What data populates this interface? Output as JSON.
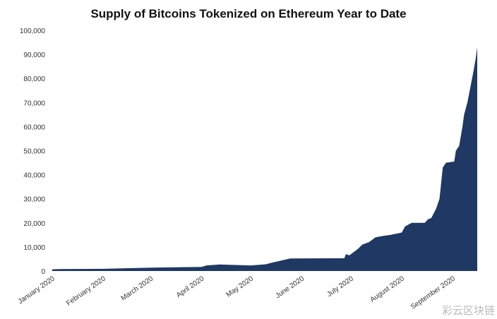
{
  "chart_data": {
    "type": "area",
    "title": "Supply of Bitcoins Tokenized on Ethereum Year to Date",
    "xlabel": "",
    "ylabel": "",
    "ylim": [
      0,
      100000
    ],
    "yticks": [
      "0",
      "10,000",
      "20,000",
      "30,000",
      "40,000",
      "50,000",
      "60,000",
      "70,000",
      "80,000",
      "90,000",
      "100,000"
    ],
    "ytick_values": [
      0,
      10000,
      20000,
      30000,
      40000,
      50000,
      60000,
      70000,
      80000,
      90000,
      100000
    ],
    "xlim": [
      "2020-01-01",
      "2020-09-16"
    ],
    "xticks": [
      "January 2020",
      "February 2020",
      "March 2020",
      "April 2020",
      "May 2020",
      "June 2020",
      "July 2020",
      "August 2020",
      "September 2020"
    ],
    "xtick_dates": [
      "2020-01-01",
      "2020-02-01",
      "2020-03-01",
      "2020-04-01",
      "2020-05-01",
      "2020-06-01",
      "2020-07-01",
      "2020-08-01",
      "2020-09-01"
    ],
    "grid": false,
    "color": "#1f3864",
    "x": [
      "2020-01-01",
      "2020-01-05",
      "2020-02-01",
      "2020-03-01",
      "2020-04-01",
      "2020-04-04",
      "2020-04-12",
      "2020-05-01",
      "2020-05-10",
      "2020-05-14",
      "2020-05-25",
      "2020-06-27",
      "2020-06-28",
      "2020-06-30",
      "2020-07-05",
      "2020-07-08",
      "2020-07-12",
      "2020-07-16",
      "2020-07-20",
      "2020-07-25",
      "2020-08-01",
      "2020-08-03",
      "2020-08-07",
      "2020-08-15",
      "2020-08-17",
      "2020-08-19",
      "2020-08-22",
      "2020-08-24",
      "2020-08-26",
      "2020-08-28",
      "2020-09-02",
      "2020-09-03",
      "2020-09-05",
      "2020-09-07",
      "2020-09-08",
      "2020-09-10",
      "2020-09-12",
      "2020-09-14",
      "2020-09-15",
      "2020-09-16"
    ],
    "y": [
      700,
      800,
      900,
      1400,
      1700,
      2300,
      2700,
      2300,
      2800,
      3500,
      5200,
      5300,
      7000,
      6500,
      9000,
      11000,
      12000,
      14000,
      14500,
      15000,
      16000,
      18500,
      20000,
      20000,
      21500,
      22000,
      26000,
      30000,
      43000,
      45000,
      45500,
      50000,
      52000,
      60000,
      65000,
      70000,
      77000,
      84000,
      88000,
      93000
    ]
  },
  "watermark": "彩云区块链"
}
